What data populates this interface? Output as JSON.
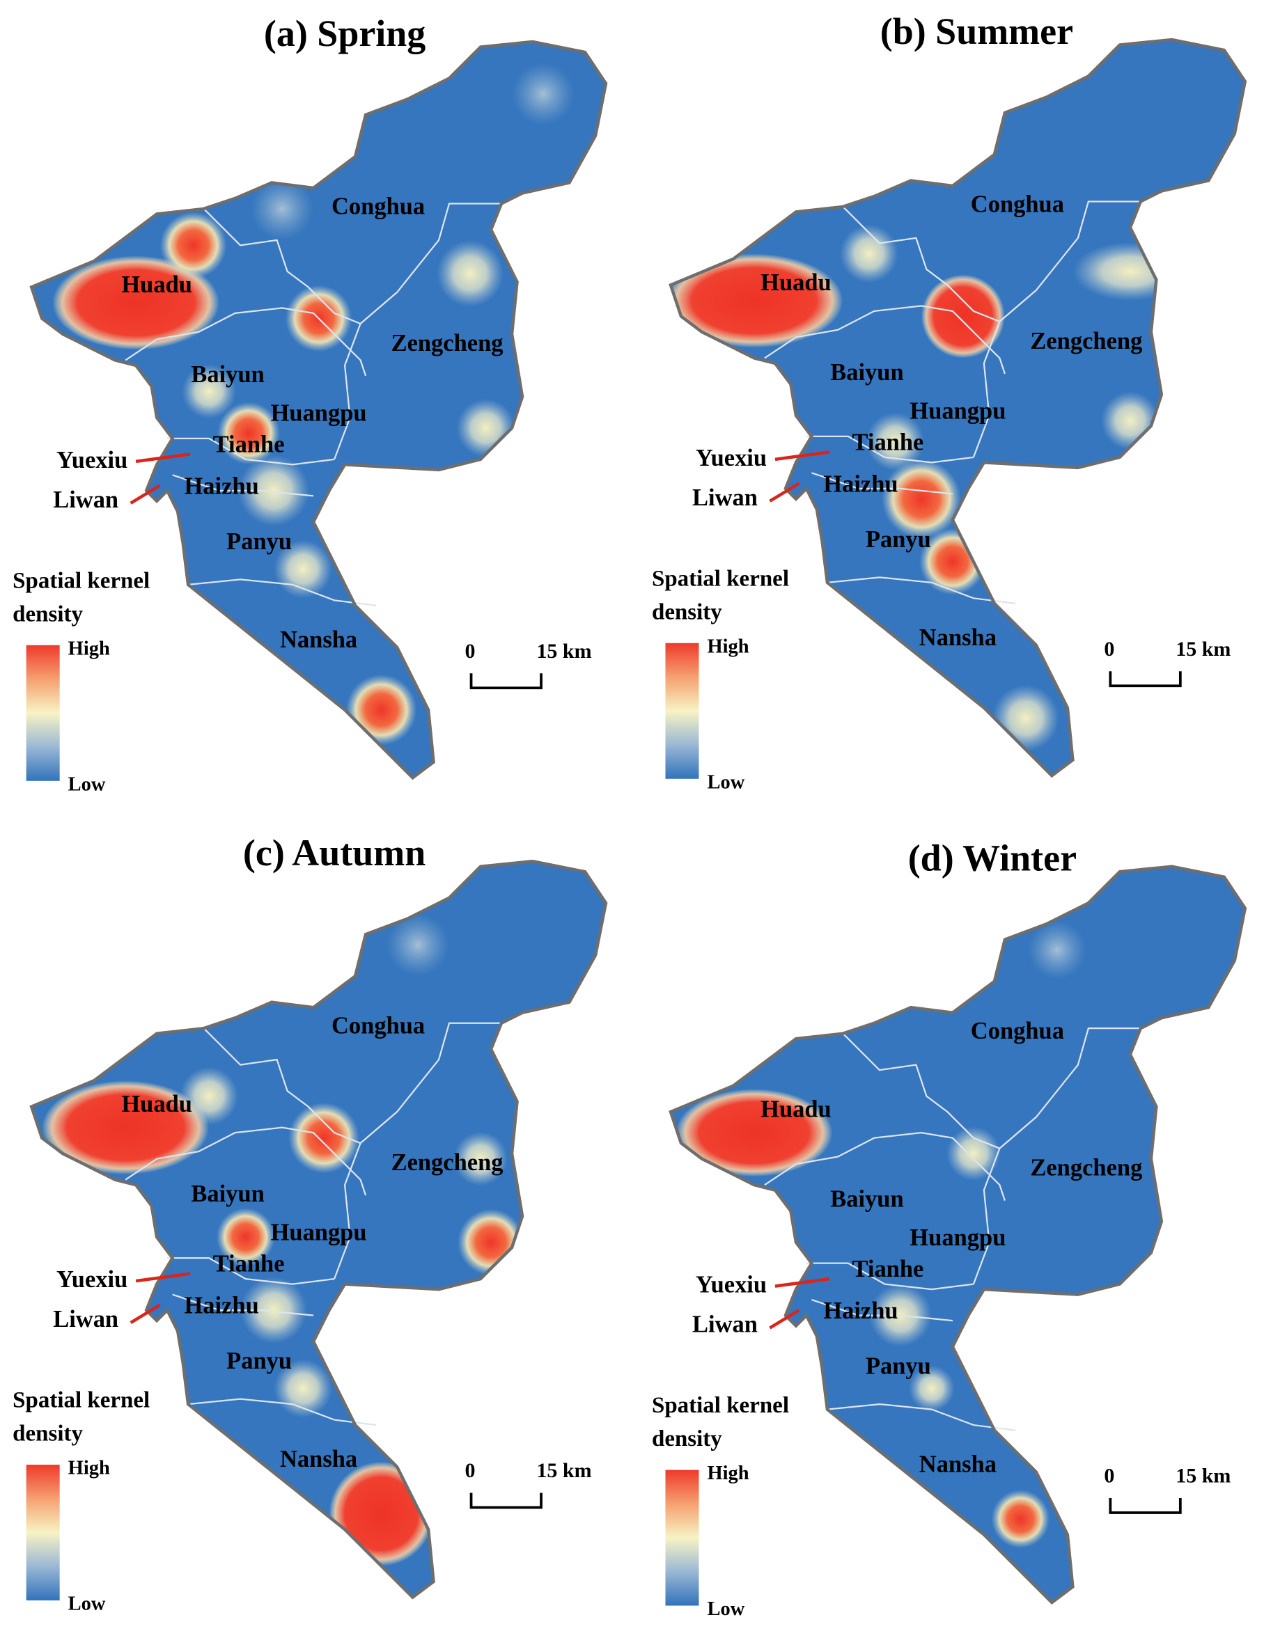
{
  "panels": [
    {
      "title": "(a) Spring",
      "districts": [
        "Conghua",
        "Huadu",
        "Zengcheng",
        "Baiyun",
        "Huangpu",
        "Tianhe",
        "Yuexiu",
        "Haizhu",
        "Liwan",
        "Panyu",
        "Nansha"
      ],
      "legend": {
        "title": [
          "Spatial kernel",
          "density"
        ],
        "high": "High",
        "low": "Low"
      },
      "scale": {
        "start": 0,
        "end": "15 km"
      }
    },
    {
      "title": "(b) Summer",
      "districts": [
        "Conghua",
        "Huadu",
        "Zengcheng",
        "Baiyun",
        "Huangpu",
        "Tianhe",
        "Yuexiu",
        "Haizhu",
        "Liwan",
        "Panyu",
        "Nansha"
      ],
      "legend": {
        "title": [
          "Spatial kernel",
          "density"
        ],
        "high": "High",
        "low": "Low"
      },
      "scale": {
        "start": 0,
        "end": "15 km"
      }
    },
    {
      "title": "(c) Autumn",
      "districts": [
        "Conghua",
        "Huadu",
        "Zengcheng",
        "Baiyun",
        "Huangpu",
        "Tianhe",
        "Yuexiu",
        "Haizhu",
        "Liwan",
        "Panyu",
        "Nansha"
      ],
      "legend": {
        "title": [
          "Spatial kernel",
          "density"
        ],
        "high": "High",
        "low": "Low"
      },
      "scale": {
        "start": 0,
        "end": "15 km"
      }
    },
    {
      "title": "(d) Winter",
      "districts": [
        "Conghua",
        "Huadu",
        "Zengcheng",
        "Baiyun",
        "Huangpu",
        "Tianhe",
        "Yuexiu",
        "Haizhu",
        "Liwan",
        "Panyu",
        "Nansha"
      ],
      "legend": {
        "title": [
          "Spatial kernel",
          "density"
        ],
        "high": "High",
        "low": "Low"
      },
      "scale": {
        "start": 0,
        "end": "15 km"
      }
    }
  ]
}
